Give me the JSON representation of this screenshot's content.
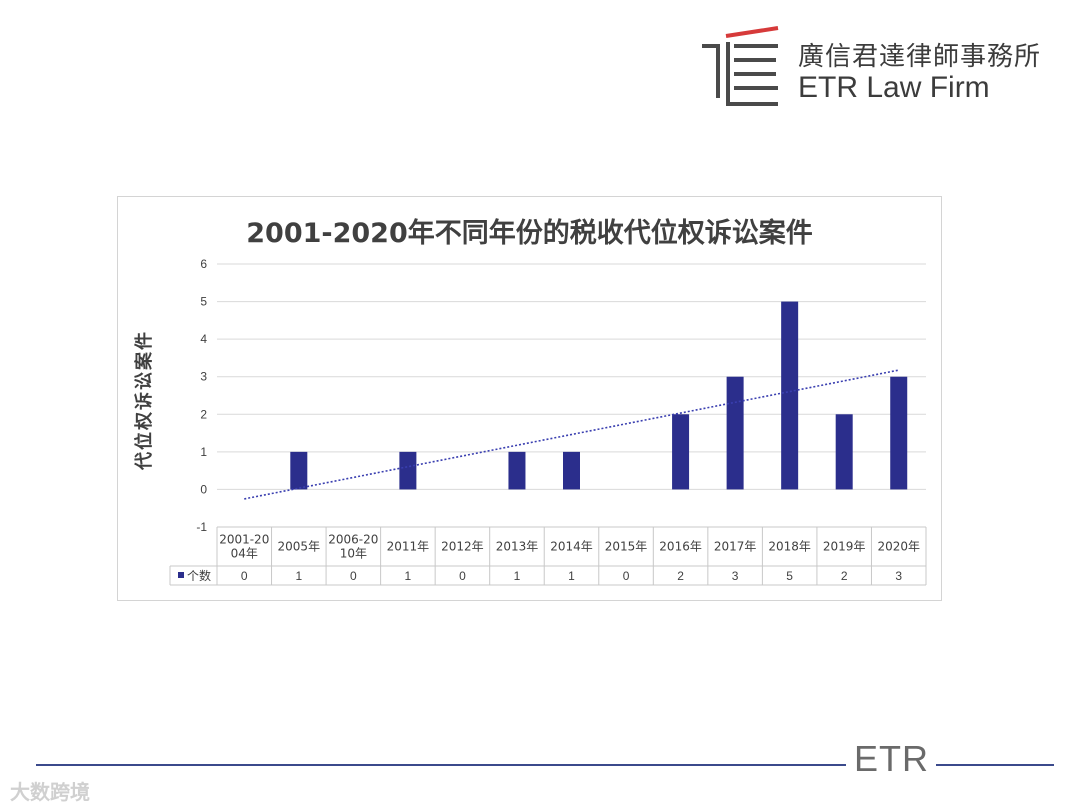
{
  "header": {
    "firm_name_cn": "廣信君達律師事務所",
    "firm_name_en": "ETR Law Firm"
  },
  "footer": {
    "brand": "ETR",
    "watermark": "大数跨境"
  },
  "colors": {
    "bar": "#2b2e8c",
    "trendline": "#3a3fb0",
    "grid": "#d9d9d9",
    "brand_red": "#d63a3a",
    "brand_gray": "#4a4a4a",
    "footer_line": "#3b4a8c"
  },
  "chart_data": {
    "type": "bar",
    "title": "2001-2020年不同年份的税收代位权诉讼案件",
    "ylabel": "代位权诉讼案件",
    "xlabel": "",
    "ylim": [
      -1,
      6
    ],
    "yticks": [
      -1,
      0,
      1,
      2,
      3,
      4,
      5,
      6
    ],
    "grid": true,
    "trendline": "linear",
    "legend_in_table": true,
    "categories": [
      [
        "2001-20",
        "04年"
      ],
      [
        "2005年"
      ],
      [
        "2006-20",
        "10年"
      ],
      [
        "2011年"
      ],
      [
        "2012年"
      ],
      [
        "2013年"
      ],
      [
        "2014年"
      ],
      [
        "2015年"
      ],
      [
        "2016年"
      ],
      [
        "2017年"
      ],
      [
        "2018年"
      ],
      [
        "2019年"
      ],
      [
        "2020年"
      ]
    ],
    "series": [
      {
        "name": "个数",
        "values": [
          0,
          1,
          0,
          1,
          0,
          1,
          1,
          0,
          2,
          3,
          5,
          2,
          3
        ]
      }
    ]
  }
}
